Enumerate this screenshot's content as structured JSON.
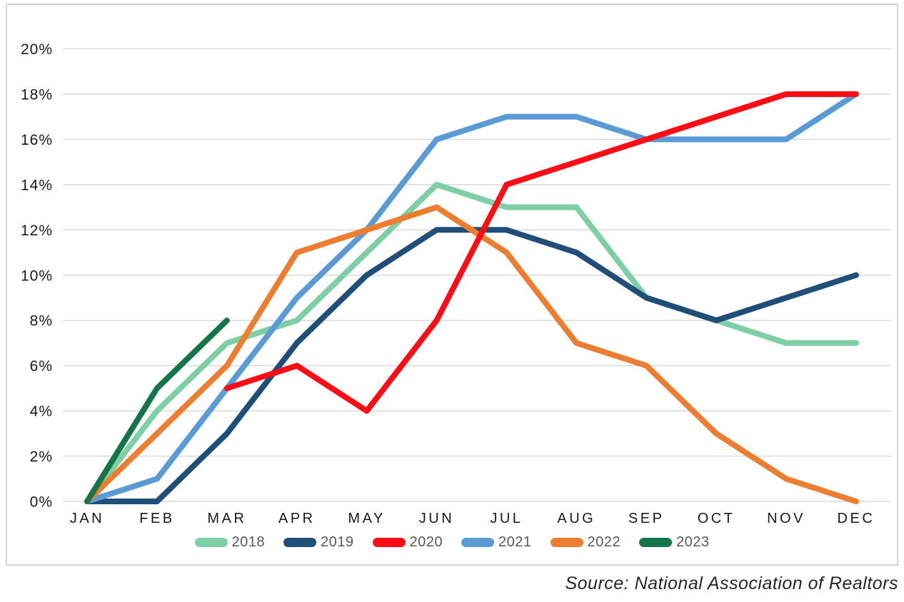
{
  "chart_data": {
    "type": "line",
    "title": "",
    "xlabel": "",
    "ylabel": "",
    "categories": [
      "JAN",
      "FEB",
      "MAR",
      "APR",
      "MAY",
      "JUN",
      "JUL",
      "AUG",
      "SEP",
      "OCT",
      "NOV",
      "DEC"
    ],
    "y_ticks": [
      "0%",
      "2%",
      "4%",
      "6%",
      "8%",
      "10%",
      "12%",
      "14%",
      "16%",
      "18%",
      "20%"
    ],
    "ylim": [
      0,
      20
    ],
    "y_tick_step": 2,
    "grid": true,
    "legend_position": "bottom",
    "series": [
      {
        "name": "2018",
        "color": "#7ECFA4",
        "values": [
          0,
          4,
          7,
          8,
          11,
          14,
          13,
          13,
          9,
          8,
          7,
          7
        ]
      },
      {
        "name": "2019",
        "color": "#1F4E79",
        "values": [
          0,
          0,
          3,
          7,
          10,
          12,
          12,
          11,
          9,
          8,
          9,
          10
        ]
      },
      {
        "name": "2020",
        "color": "#FB0D15",
        "values": [
          null,
          null,
          5,
          6,
          4,
          8,
          14,
          15,
          16,
          17,
          18,
          18
        ]
      },
      {
        "name": "2021",
        "color": "#5B9BD5",
        "values": [
          0,
          1,
          5,
          9,
          12,
          16,
          17,
          17,
          16,
          16,
          16,
          18
        ]
      },
      {
        "name": "2022",
        "color": "#ED7D31",
        "values": [
          0,
          3,
          6,
          11,
          12,
          13,
          11,
          7,
          6,
          3,
          1,
          0
        ]
      },
      {
        "name": "2023",
        "color": "#137548",
        "values": [
          0,
          5,
          8,
          null,
          null,
          null,
          null,
          null,
          null,
          null,
          null,
          null
        ]
      }
    ]
  },
  "source": {
    "text": "Source: National Association of Realtors"
  },
  "colors": {
    "background": "#FFFFFF",
    "frame_border": "#D5D5D5",
    "gridline": "#D9D9D9",
    "axis_label": "#1A1A1A",
    "legend_label": "#595959",
    "source_text": "#262626"
  }
}
